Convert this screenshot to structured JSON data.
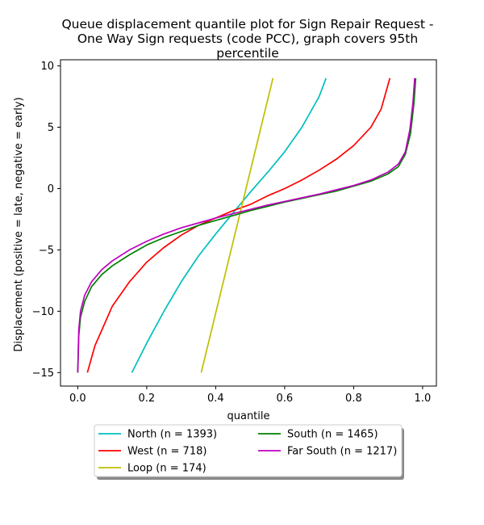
{
  "chart_data": {
    "type": "line",
    "title_lines": [
      "Queue displacement quantile plot for Sign Repair Request -",
      "One Way Sign  requests (code PCC), graph covers 95th",
      "percentile"
    ],
    "xlabel": "quantile",
    "ylabel": "Displacement (positive = late, negative = early)",
    "xlim": [
      -0.05,
      1.04
    ],
    "ylim": [
      -16.1,
      10.5
    ],
    "x_ticks": [
      0.0,
      0.2,
      0.4,
      0.6,
      0.8,
      1.0
    ],
    "x_tick_labels": [
      "0.0",
      "0.2",
      "0.4",
      "0.6",
      "0.8",
      "1.0"
    ],
    "y_ticks": [
      10,
      5,
      0,
      -5,
      -10,
      -15
    ],
    "y_tick_labels": [
      "10",
      "5",
      "0",
      "−5",
      "−10",
      "−15"
    ],
    "legend_position": "below",
    "series": [
      {
        "name": "North (n = 1393)",
        "color": "#00bfbf",
        "points": [
          [
            0.157,
            -15
          ],
          [
            0.2,
            -12.6
          ],
          [
            0.25,
            -10
          ],
          [
            0.3,
            -7.6
          ],
          [
            0.35,
            -5.5
          ],
          [
            0.4,
            -3.7
          ],
          [
            0.45,
            -2
          ],
          [
            0.5,
            -0.3
          ],
          [
            0.55,
            1.3
          ],
          [
            0.6,
            3
          ],
          [
            0.65,
            5
          ],
          [
            0.7,
            7.5
          ],
          [
            0.72,
            9
          ]
        ]
      },
      {
        "name": "West (n = 718)",
        "color": "#ff0000",
        "points": [
          [
            0.028,
            -15
          ],
          [
            0.05,
            -12.8
          ],
          [
            0.1,
            -9.6
          ],
          [
            0.15,
            -7.6
          ],
          [
            0.2,
            -6
          ],
          [
            0.25,
            -4.8
          ],
          [
            0.3,
            -3.8
          ],
          [
            0.35,
            -3
          ],
          [
            0.4,
            -2.4
          ],
          [
            0.45,
            -1.8
          ],
          [
            0.5,
            -1.3
          ],
          [
            0.55,
            -0.6
          ],
          [
            0.6,
            0
          ],
          [
            0.65,
            0.7
          ],
          [
            0.7,
            1.5
          ],
          [
            0.75,
            2.4
          ],
          [
            0.8,
            3.5
          ],
          [
            0.85,
            5
          ],
          [
            0.88,
            6.5
          ],
          [
            0.905,
            9
          ]
        ]
      },
      {
        "name": "Loop (n = 174)",
        "color": "#bfbf00",
        "points": [
          [
            0.358,
            -15
          ],
          [
            0.566,
            9
          ]
        ]
      },
      {
        "name": "South (n = 1465)",
        "color": "#008000",
        "points": [
          [
            0.0,
            -15
          ],
          [
            0.003,
            -12
          ],
          [
            0.008,
            -10.5
          ],
          [
            0.02,
            -9.2
          ],
          [
            0.04,
            -8
          ],
          [
            0.07,
            -7
          ],
          [
            0.1,
            -6.3
          ],
          [
            0.15,
            -5.4
          ],
          [
            0.2,
            -4.6
          ],
          [
            0.25,
            -4
          ],
          [
            0.3,
            -3.5
          ],
          [
            0.35,
            -3
          ],
          [
            0.4,
            -2.6
          ],
          [
            0.45,
            -2.2
          ],
          [
            0.5,
            -1.8
          ],
          [
            0.55,
            -1.45
          ],
          [
            0.6,
            -1.1
          ],
          [
            0.65,
            -0.8
          ],
          [
            0.7,
            -0.5
          ],
          [
            0.75,
            -0.2
          ],
          [
            0.8,
            0.2
          ],
          [
            0.85,
            0.6
          ],
          [
            0.9,
            1.2
          ],
          [
            0.93,
            1.8
          ],
          [
            0.95,
            2.8
          ],
          [
            0.965,
            4.5
          ],
          [
            0.975,
            7
          ],
          [
            0.98,
            9
          ]
        ]
      },
      {
        "name": "Far South (n = 1217)",
        "color": "#bf00bf",
        "points": [
          [
            0.0,
            -15
          ],
          [
            0.003,
            -11.5
          ],
          [
            0.008,
            -10
          ],
          [
            0.02,
            -8.7
          ],
          [
            0.04,
            -7.6
          ],
          [
            0.07,
            -6.6
          ],
          [
            0.1,
            -5.9
          ],
          [
            0.15,
            -5
          ],
          [
            0.2,
            -4.3
          ],
          [
            0.25,
            -3.7
          ],
          [
            0.3,
            -3.2
          ],
          [
            0.35,
            -2.8
          ],
          [
            0.4,
            -2.4
          ],
          [
            0.45,
            -2.05
          ],
          [
            0.5,
            -1.7
          ],
          [
            0.55,
            -1.35
          ],
          [
            0.6,
            -1.05
          ],
          [
            0.65,
            -0.75
          ],
          [
            0.7,
            -0.45
          ],
          [
            0.75,
            -0.1
          ],
          [
            0.8,
            0.25
          ],
          [
            0.85,
            0.7
          ],
          [
            0.9,
            1.35
          ],
          [
            0.93,
            2
          ],
          [
            0.95,
            3
          ],
          [
            0.963,
            4.8
          ],
          [
            0.972,
            7
          ],
          [
            0.977,
            9
          ]
        ]
      }
    ]
  }
}
